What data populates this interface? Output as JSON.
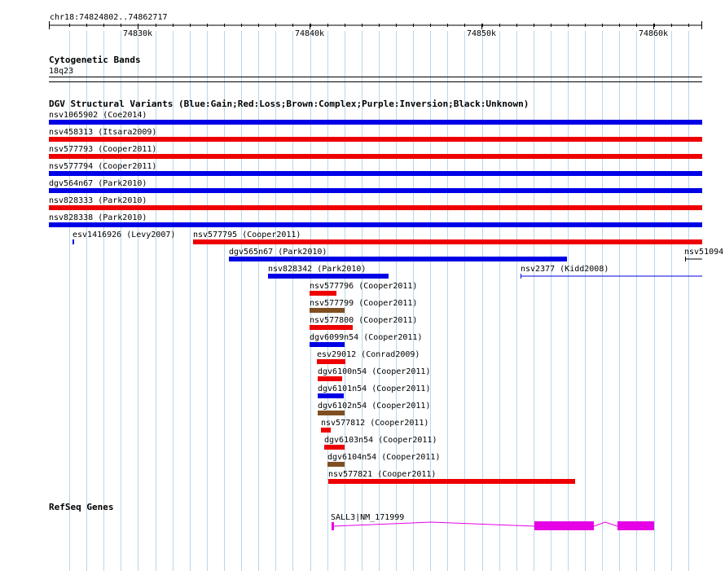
{
  "region": "chr18:74824802..74862717",
  "ruler": {
    "ticks": [
      "74830k",
      "74840k",
      "74850k",
      "74860k"
    ]
  },
  "tracks": {
    "cytoband": {
      "title": "Cytogenetic Bands",
      "band": "18q23"
    },
    "dgv": {
      "title": "DGV Structural Variants (Blue:Gain;Red:Loss;Brown:Complex;Purple:Inversion;Black:Unknown)",
      "features": [
        {
          "label": "nsv1065902 (Coe2014)",
          "type": "gain"
        },
        {
          "label": "nsv458313 (Itsara2009)",
          "type": "loss"
        },
        {
          "label": "nsv577793 (Cooper2011)",
          "type": "loss"
        },
        {
          "label": "nsv577794 (Cooper2011)",
          "type": "gain"
        },
        {
          "label": "dgv564n67 (Park2010)",
          "type": "gain"
        },
        {
          "label": "nsv828333 (Park2010)",
          "type": "loss"
        },
        {
          "label": "nsv828338 (Park2010)",
          "type": "gain"
        },
        {
          "label": "esv1416926 (Levy2007)",
          "type": "gain"
        },
        {
          "label": "nsv577795 (Cooper2011)",
          "type": "loss"
        },
        {
          "label": "dgv565n67 (Park2010)",
          "type": "gain"
        },
        {
          "label": "nsv51094",
          "type": "unknown"
        },
        {
          "label": "nsv828342 (Park2010)",
          "type": "gain"
        },
        {
          "label": "nsv2377 (Kidd2008)",
          "type": "gain"
        },
        {
          "label": "nsv577796 (Cooper2011)",
          "type": "loss"
        },
        {
          "label": "nsv577799 (Cooper2011)",
          "type": "complex"
        },
        {
          "label": "nsv577800 (Cooper2011)",
          "type": "loss"
        },
        {
          "label": "dgv6099n54 (Cooper2011)",
          "type": "gain"
        },
        {
          "label": "esv29012 (Conrad2009)",
          "type": "loss"
        },
        {
          "label": "dgv6100n54 (Cooper2011)",
          "type": "loss"
        },
        {
          "label": "dgv6101n54 (Cooper2011)",
          "type": "gain"
        },
        {
          "label": "dgv6102n54 (Cooper2011)",
          "type": "complex"
        },
        {
          "label": "nsv577812 (Cooper2011)",
          "type": "loss"
        },
        {
          "label": "dgv6103n54 (Cooper2011)",
          "type": "loss"
        },
        {
          "label": "dgv6104n54 (Cooper2011)",
          "type": "complex"
        },
        {
          "label": "nsv577821 (Cooper2011)",
          "type": "loss"
        }
      ]
    },
    "refseq": {
      "title": "RefSeq Genes",
      "gene": "SALL3|NM_171999"
    }
  },
  "colors": {
    "gain": "#0000e6",
    "loss": "#ee0000",
    "complex": "#7f4f22",
    "unknown": "#000000",
    "gene": "#e600e6",
    "gridline": "#b8d8ea"
  }
}
